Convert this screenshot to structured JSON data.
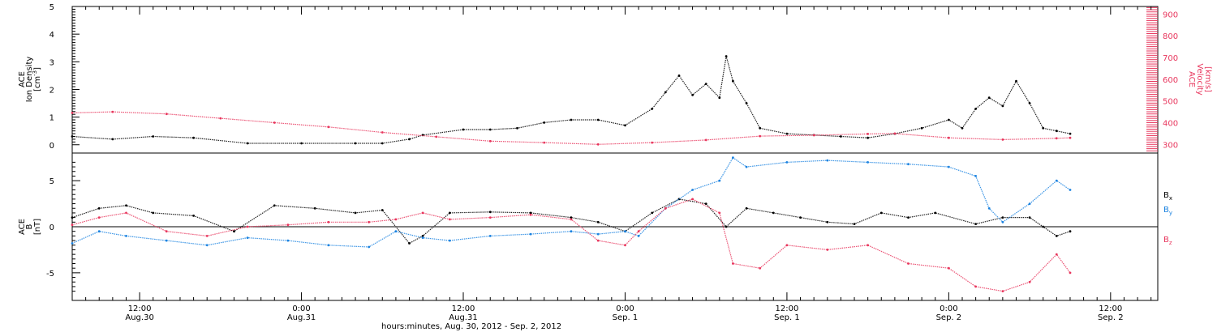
{
  "chart_data": [
    {
      "type": "scatter",
      "panel": "top",
      "x_axis": "time",
      "xlim": [
        "2012-08-30T07:00",
        "2012-09-02T15:30"
      ],
      "left_axis": {
        "label_lines": [
          "ACE",
          "Ion Density"
        ],
        "unit": "[cm",
        "unit_sup": "-3",
        "unit_close": "]",
        "ylim": [
          -0.3,
          5.0
        ],
        "ticks": [
          0,
          1,
          2,
          3,
          4,
          5
        ],
        "tick_labels": [
          "0",
          "1",
          "2",
          "3",
          "4",
          "5"
        ]
      },
      "right_axis": {
        "label_lines": [
          "ACE",
          "Velocity"
        ],
        "unit": "[km/s]",
        "ylim": [
          260,
          935
        ],
        "ticks": [
          300,
          400,
          500,
          600,
          700,
          800,
          900
        ],
        "tick_labels": [
          "300",
          "400",
          "500",
          "600",
          "700",
          "800",
          "900"
        ],
        "color": "#e8365d"
      },
      "series": [
        {
          "color": "#000000",
          "axis": "left",
          "x": [
            "2012-08-30T07:00",
            "2012-08-30T10:00",
            "2012-08-30T13:00",
            "2012-08-30T16:00",
            "2012-08-30T20:00",
            "2012-08-31T00:00",
            "2012-08-31T04:00",
            "2012-08-31T06:00",
            "2012-08-31T08:00",
            "2012-08-31T09:00",
            "2012-08-31T12:00",
            "2012-08-31T14:00",
            "2012-08-31T16:00",
            "2012-08-31T18:00",
            "2012-08-31T20:00",
            "2012-08-31T22:00",
            "2012-09-01T00:00",
            "2012-09-01T02:00",
            "2012-09-01T03:00",
            "2012-09-01T04:00",
            "2012-09-01T05:00",
            "2012-09-01T06:00",
            "2012-09-01T07:00",
            "2012-09-01T07:30",
            "2012-09-01T08:00",
            "2012-09-01T09:00",
            "2012-09-01T10:00",
            "2012-09-01T12:00",
            "2012-09-01T14:00",
            "2012-09-01T16:00",
            "2012-09-01T18:00",
            "2012-09-01T20:00",
            "2012-09-01T22:00",
            "2012-09-02T00:00",
            "2012-09-02T01:00",
            "2012-09-02T02:00",
            "2012-09-02T03:00",
            "2012-09-02T04:00",
            "2012-09-02T05:00",
            "2012-09-02T06:00",
            "2012-09-02T07:00",
            "2012-09-02T08:00",
            "2012-09-02T09:00"
          ],
          "y": [
            0.3,
            0.2,
            0.3,
            0.25,
            0.05,
            0.05,
            0.05,
            0.05,
            0.2,
            0.35,
            0.55,
            0.55,
            0.6,
            0.8,
            0.9,
            0.9,
            0.7,
            1.3,
            1.9,
            2.5,
            1.8,
            2.2,
            1.7,
            3.2,
            2.3,
            1.5,
            0.6,
            0.4,
            0.35,
            0.3,
            0.25,
            0.4,
            0.6,
            0.9,
            0.6,
            1.3,
            1.7,
            1.4,
            2.3,
            1.5,
            0.6,
            0.5,
            0.4
          ]
        },
        {
          "color": "#e8365d",
          "axis": "right",
          "x": [
            "2012-08-30T07:00",
            "2012-08-30T10:00",
            "2012-08-30T14:00",
            "2012-08-30T18:00",
            "2012-08-30T22:00",
            "2012-08-31T02:00",
            "2012-08-31T06:00",
            "2012-08-31T10:00",
            "2012-08-31T14:00",
            "2012-08-31T18:00",
            "2012-08-31T22:00",
            "2012-09-01T02:00",
            "2012-09-01T06:00",
            "2012-09-01T10:00",
            "2012-09-01T14:00",
            "2012-09-01T18:00",
            "2012-09-01T20:00",
            "2012-09-02T00:00",
            "2012-09-02T04:00",
            "2012-09-02T08:00",
            "2012-09-02T09:00"
          ],
          "y": [
            445,
            450,
            440,
            420,
            400,
            380,
            355,
            335,
            315,
            308,
            300,
            308,
            320,
            338,
            342,
            348,
            350,
            330,
            322,
            328,
            330
          ]
        }
      ]
    },
    {
      "type": "scatter",
      "panel": "bottom",
      "x_axis": "time",
      "xlim": [
        "2012-08-30T07:00",
        "2012-09-02T15:30"
      ],
      "left_axis": {
        "label_lines": [
          "ACE",
          "B"
        ],
        "unit": "[nT]",
        "ylim": [
          -8.0,
          8.0
        ],
        "ticks": [
          -5,
          0,
          5
        ],
        "tick_labels": [
          "-5",
          "0",
          "5"
        ]
      },
      "legend": [
        "Bx",
        "By",
        "Bz"
      ],
      "series": [
        {
          "name": "B",
          "subscript": "x",
          "color": "#000000",
          "x": [
            "2012-08-30T07:00",
            "2012-08-30T09:00",
            "2012-08-30T11:00",
            "2012-08-30T13:00",
            "2012-08-30T16:00",
            "2012-08-30T19:00",
            "2012-08-30T22:00",
            "2012-08-31T01:00",
            "2012-08-31T04:00",
            "2012-08-31T06:00",
            "2012-08-31T08:00",
            "2012-08-31T09:00",
            "2012-08-31T11:00",
            "2012-08-31T14:00",
            "2012-08-31T17:00",
            "2012-08-31T20:00",
            "2012-08-31T22:00",
            "2012-09-01T00:00",
            "2012-09-01T02:00",
            "2012-09-01T04:00",
            "2012-09-01T06:00",
            "2012-09-01T07:30",
            "2012-09-01T09:00",
            "2012-09-01T11:00",
            "2012-09-01T13:00",
            "2012-09-01T15:00",
            "2012-09-01T17:00",
            "2012-09-01T19:00",
            "2012-09-01T21:00",
            "2012-09-01T23:00",
            "2012-09-02T02:00",
            "2012-09-02T04:00",
            "2012-09-02T06:00",
            "2012-09-02T07:00",
            "2012-09-02T08:00",
            "2012-09-02T09:00"
          ],
          "y": [
            1.0,
            2.0,
            2.3,
            1.5,
            1.2,
            -0.5,
            2.3,
            2.0,
            1.5,
            1.8,
            -1.8,
            -1.0,
            1.5,
            1.6,
            1.5,
            1.0,
            0.5,
            -0.5,
            1.5,
            3.0,
            2.5,
            0.0,
            2.0,
            1.5,
            1.0,
            0.5,
            0.3,
            1.5,
            1.0,
            1.5,
            0.3,
            1.0,
            1.0,
            0.0,
            -1.0,
            -0.5
          ]
        },
        {
          "name": "B",
          "subscript": "y",
          "color": "#1a82e0",
          "x": [
            "2012-08-30T07:00",
            "2012-08-30T09:00",
            "2012-08-30T11:00",
            "2012-08-30T14:00",
            "2012-08-30T17:00",
            "2012-08-30T20:00",
            "2012-08-30T23:00",
            "2012-08-31T02:00",
            "2012-08-31T05:00",
            "2012-08-31T07:00",
            "2012-08-31T09:00",
            "2012-08-31T11:00",
            "2012-08-31T14:00",
            "2012-08-31T17:00",
            "2012-08-31T20:00",
            "2012-08-31T22:00",
            "2012-09-01T00:00",
            "2012-09-01T01:00",
            "2012-09-01T03:00",
            "2012-09-01T05:00",
            "2012-09-01T07:00",
            "2012-09-01T08:00",
            "2012-09-01T09:00",
            "2012-09-01T12:00",
            "2012-09-01T15:00",
            "2012-09-01T18:00",
            "2012-09-01T21:00",
            "2012-09-02T00:00",
            "2012-09-02T02:00",
            "2012-09-02T03:00",
            "2012-09-02T04:00",
            "2012-09-02T06:00",
            "2012-09-02T08:00",
            "2012-09-02T09:00"
          ],
          "y": [
            -1.8,
            -0.5,
            -1.0,
            -1.5,
            -2.0,
            -1.2,
            -1.5,
            -2.0,
            -2.2,
            -0.5,
            -1.2,
            -1.5,
            -1.0,
            -0.8,
            -0.5,
            -0.8,
            -0.5,
            -1.0,
            2.0,
            4.0,
            5.0,
            7.5,
            6.5,
            7.0,
            7.2,
            7.0,
            6.8,
            6.5,
            5.5,
            2.0,
            0.5,
            2.5,
            5.0,
            4.0
          ]
        },
        {
          "name": "B",
          "subscript": "z",
          "color": "#e8365d",
          "x": [
            "2012-08-30T07:00",
            "2012-08-30T09:00",
            "2012-08-30T11:00",
            "2012-08-30T14:00",
            "2012-08-30T17:00",
            "2012-08-30T20:00",
            "2012-08-30T23:00",
            "2012-08-31T02:00",
            "2012-08-31T05:00",
            "2012-08-31T07:00",
            "2012-08-31T09:00",
            "2012-08-31T11:00",
            "2012-08-31T14:00",
            "2012-08-31T17:00",
            "2012-08-31T20:00",
            "2012-08-31T22:00",
            "2012-09-01T00:00",
            "2012-09-01T01:00",
            "2012-09-01T03:00",
            "2012-09-01T05:00",
            "2012-09-01T07:00",
            "2012-09-01T08:00",
            "2012-09-01T10:00",
            "2012-09-01T12:00",
            "2012-09-01T15:00",
            "2012-09-01T18:00",
            "2012-09-01T21:00",
            "2012-09-02T00:00",
            "2012-09-02T02:00",
            "2012-09-02T04:00",
            "2012-09-02T06:00",
            "2012-09-02T08:00",
            "2012-09-02T09:00"
          ],
          "y": [
            0.2,
            1.0,
            1.5,
            -0.5,
            -1.0,
            0.0,
            0.2,
            0.5,
            0.5,
            0.8,
            1.5,
            0.8,
            1.0,
            1.3,
            0.8,
            -1.5,
            -2.0,
            -0.5,
            2.0,
            3.0,
            1.5,
            -4.0,
            -4.5,
            -2.0,
            -2.5,
            -2.0,
            -4.0,
            -4.5,
            -6.5,
            -7.0,
            -6.0,
            -3.0,
            -5.0
          ]
        }
      ]
    }
  ],
  "x_axis_labels": [
    {
      "time": "2012-08-30T12:00",
      "line1": "12:00",
      "line2": "Aug.30"
    },
    {
      "time": "2012-08-31T00:00",
      "line1": "0:00",
      "line2": "Aug.31"
    },
    {
      "time": "2012-08-31T12:00",
      "line1": "12:00",
      "line2": "Aug.31"
    },
    {
      "time": "2012-09-01T00:00",
      "line1": "0:00",
      "line2": "Sep. 1"
    },
    {
      "time": "2012-09-01T12:00",
      "line1": "12:00",
      "line2": "Sep. 1"
    },
    {
      "time": "2012-09-02T00:00",
      "line1": "0:00",
      "line2": "Sep. 2"
    },
    {
      "time": "2012-09-02T12:00",
      "line1": "12:00",
      "line2": "Sep. 2"
    }
  ],
  "x_title": "hours:minutes, Aug. 30, 2012 - Sep.  2, 2012"
}
